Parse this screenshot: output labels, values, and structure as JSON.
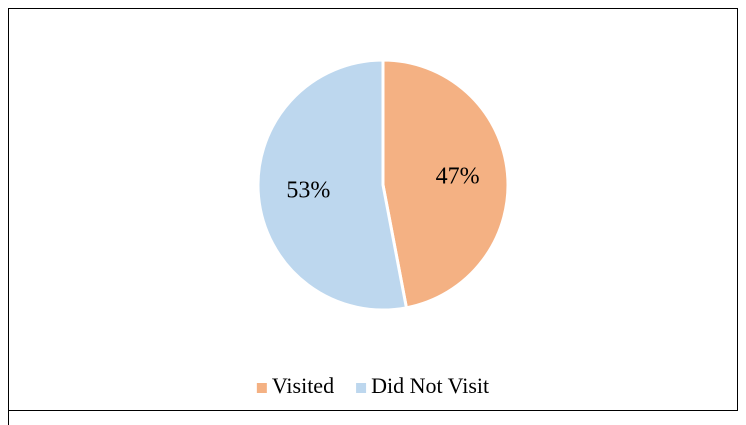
{
  "chart_data": {
    "type": "pie",
    "categories": [
      "Visited",
      "Did Not Visit"
    ],
    "values": [
      47,
      53
    ],
    "value_labels": [
      "47%",
      "53%"
    ],
    "colors": [
      "#F4B183",
      "#BDD7EE"
    ],
    "legend": "bottom"
  }
}
